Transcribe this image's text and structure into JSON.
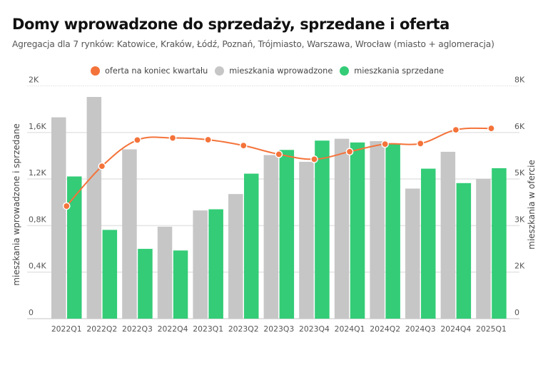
{
  "title": "Domy wprowadzone do sprzedaży, sprzedane i oferta",
  "subtitle": "Agregacja dla 7 rynków: Katowice, Kraków, Łódź, Poznań, Trójmiasto, Warszawa, Wrocław (miasto + aglomeracja)",
  "legend": [
    {
      "label": "oferta na koniec kwartału",
      "color": "#F4733A"
    },
    {
      "label": "mieszkania wprowadzone",
      "color": "#C6C6C6"
    },
    {
      "label": "mieszkania sprzedane",
      "color": "#34CC77"
    }
  ],
  "chart_data": {
    "type": "bar",
    "title": "Domy wprowadzone do sprzedaży, sprzedane i oferta",
    "subtitle": "Agregacja dla 7 rynków: Katowice, Kraków, Łódź, Poznań, Trójmiasto, Warszawa, Wrocław (miasto + aglomeracja)",
    "categories": [
      "2022Q1",
      "2022Q2",
      "2022Q3",
      "2022Q4",
      "2023Q1",
      "2023Q2",
      "2023Q3",
      "2023Q4",
      "2024Q1",
      "2024Q2",
      "2024Q3",
      "2024Q4",
      "2025Q1"
    ],
    "ylabel": "mieszkania wprowadzone i sprzedane",
    "y2label": "mieszkania w ofercie",
    "ylim": [
      0,
      2000
    ],
    "y2lim": [
      0,
      8000
    ],
    "yticks": [
      0,
      400,
      800,
      1200,
      1600,
      2000
    ],
    "ytick_labels": [
      "0",
      "0,4K",
      "0,8K",
      "1,2K",
      "1,6K",
      "2K"
    ],
    "y2ticks": [
      0,
      1600,
      3200,
      4800,
      6400,
      8000
    ],
    "y2tick_labels": [
      "0",
      "2K",
      "3K",
      "5K",
      "6K",
      "8K"
    ],
    "grid": true,
    "legend_position": "top-center",
    "series": [
      {
        "name": "mieszkania wprowadzone",
        "type": "bar",
        "axis": "left",
        "color": "#C6C6C6",
        "values": [
          1730,
          1905,
          1455,
          790,
          930,
          1071,
          1406,
          1348,
          1546,
          1526,
          1118,
          1434,
          1201
        ]
      },
      {
        "name": "mieszkania sprzedane",
        "type": "bar",
        "axis": "left",
        "color": "#34CC77",
        "values": [
          1222,
          763,
          600,
          586,
          940,
          1246,
          1450,
          1530,
          1514,
          1504,
          1289,
          1165,
          1293
        ]
      },
      {
        "name": "oferta na koniec kwartału",
        "type": "line",
        "axis": "right",
        "color": "#F4733A",
        "values": [
          3870,
          5240,
          6140,
          6210,
          6150,
          5950,
          5650,
          5480,
          5740,
          6000,
          6020,
          6490,
          6540
        ]
      }
    ]
  }
}
